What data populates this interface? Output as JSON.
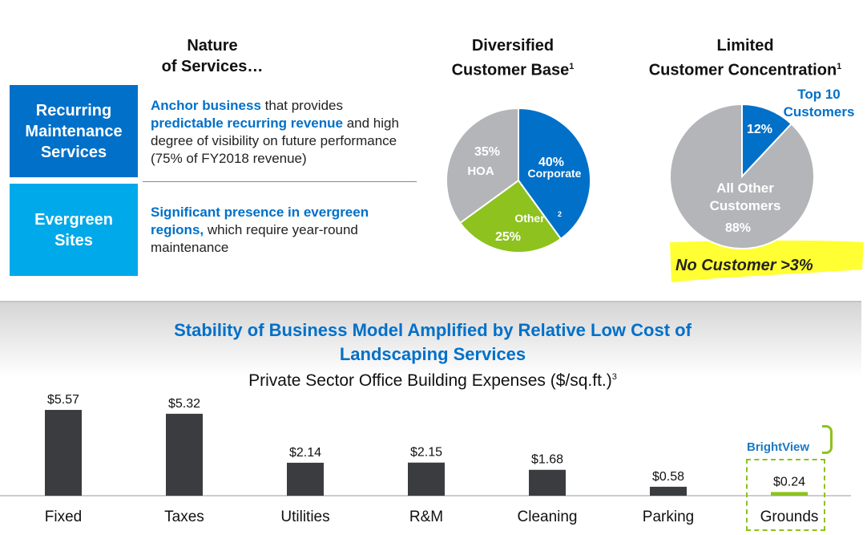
{
  "headers": {
    "nature1": "Nature",
    "nature2": "of Services…",
    "div1": "Diversified",
    "div2": "Customer Base",
    "div_sup": "1",
    "lim1": "Limited",
    "lim2": "Customer Concentration",
    "lim_sup": "1"
  },
  "services": [
    {
      "name": "Recurring Maintenance Services",
      "b1": "Anchor business",
      "t1": " that provides ",
      "b2": "predictable recurring revenue",
      "t2": " and high degree of visibility on future performance (75% of FY2018 revenue)"
    },
    {
      "name": "Evergreen Sites",
      "b1": "Significant presence in evergreen regions,",
      "t1": " which require year-round maintenance"
    }
  ],
  "callout": "No Customer >3%",
  "section_title": "Stability of Business Model Amplified by Relative Low Cost of Landscaping Services",
  "logo": "BrightView",
  "colors": {
    "blue": "#0070C9",
    "lightblue": "#00A9E9",
    "green": "#8DC21F",
    "grey": "#B3B5B8",
    "bar": "#3A3C3F",
    "yellow": "#FFFF33"
  },
  "chart_data": [
    {
      "type": "pie",
      "title": "Diversified Customer Base",
      "slices": [
        {
          "label": "Corporate",
          "value": 40,
          "text": "40%"
        },
        {
          "label": "Other",
          "sup": "2",
          "value": 25,
          "text": "25%"
        },
        {
          "label": "HOA",
          "value": 35,
          "text": "35%"
        }
      ]
    },
    {
      "type": "pie",
      "title": "Limited Customer Concentration",
      "slices": [
        {
          "label": "Top 10 Customers",
          "value": 12,
          "text": "12%"
        },
        {
          "label": "All Other Customers",
          "value": 88,
          "text": "88%"
        }
      ]
    },
    {
      "type": "bar",
      "title": "Private Sector Office Building Expenses ($/sq.ft.)",
      "title_sup": "3",
      "categories": [
        "Fixed",
        "Taxes",
        "Utilities",
        "R&M",
        "Cleaning",
        "Parking",
        "Grounds"
      ],
      "values": [
        5.57,
        5.32,
        2.14,
        2.15,
        1.68,
        0.58,
        0.24
      ],
      "labels": [
        "$5.57",
        "$5.32",
        "$2.14",
        "$2.15",
        "$1.68",
        "$0.58",
        "$0.24"
      ],
      "highlight": "Grounds"
    }
  ]
}
